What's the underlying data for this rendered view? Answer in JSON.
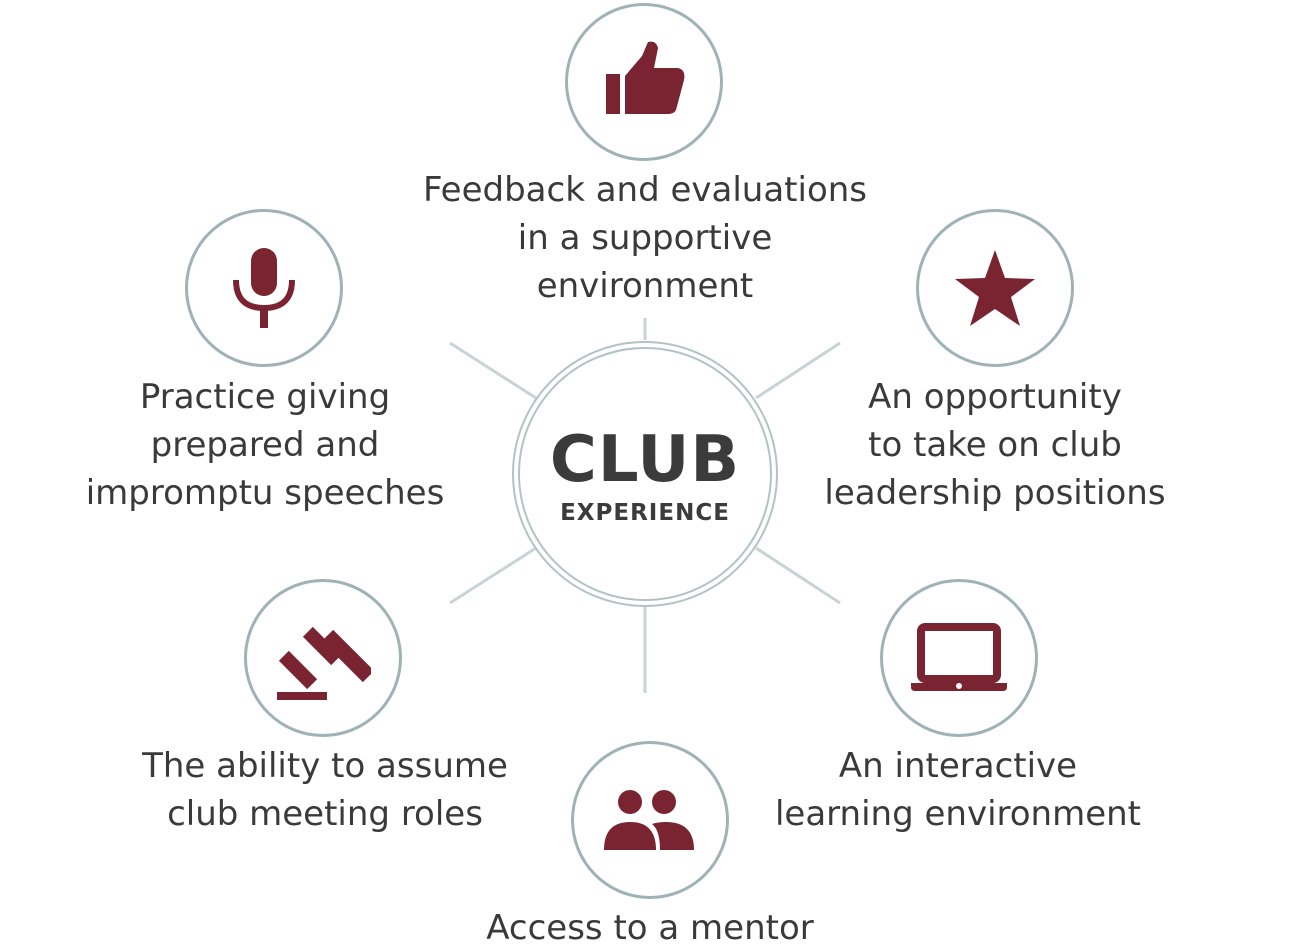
{
  "center": {
    "title": "CLUB",
    "subtitle": "EXPERIENCE"
  },
  "items": [
    {
      "icon": "thumbs-up-icon",
      "lines": [
        "Feedback and evaluations",
        "in a supportive",
        "environment"
      ]
    },
    {
      "icon": "star-icon",
      "lines": [
        "An opportunity",
        "to take on club",
        "leadership positions"
      ]
    },
    {
      "icon": "laptop-icon",
      "lines": [
        "An interactive",
        "learning environment"
      ]
    },
    {
      "icon": "people-icon",
      "lines": [
        "Access to a mentor"
      ]
    },
    {
      "icon": "gavel-icon",
      "lines": [
        "The ability to assume",
        "club meeting roles"
      ]
    },
    {
      "icon": "microphone-icon",
      "lines": [
        "Practice giving",
        "prepared and",
        "impromptu speeches"
      ]
    }
  ],
  "colors": {
    "accent": "#7a2331",
    "ring": "#9fb2b5",
    "text": "#3a3a3a"
  }
}
